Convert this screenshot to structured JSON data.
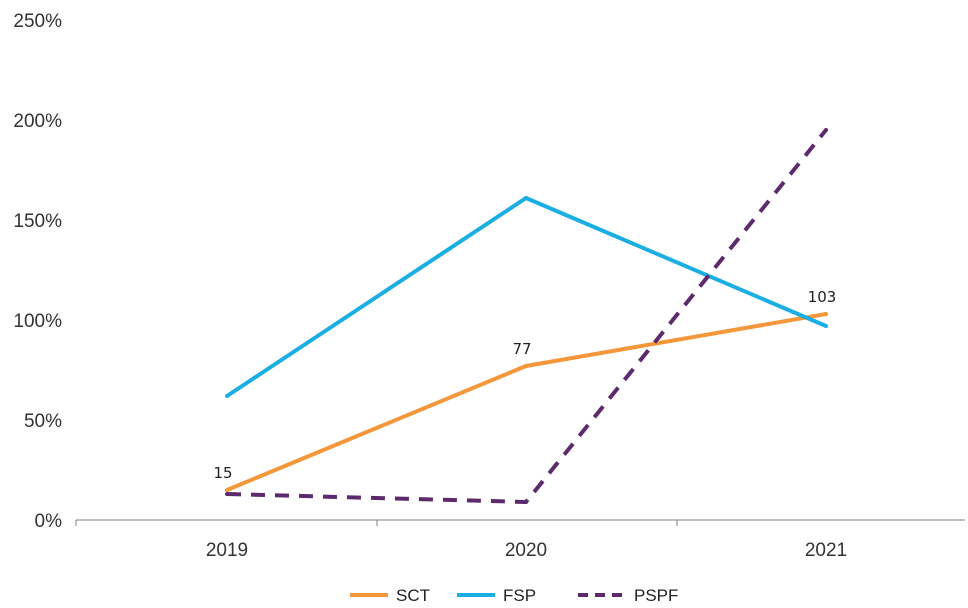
{
  "chart_data": {
    "type": "line",
    "categories": [
      "2019",
      "2020",
      "2021"
    ],
    "ylim": [
      0,
      250
    ],
    "y_ticks": [
      0,
      50,
      100,
      150,
      200,
      250
    ],
    "y_tick_labels": [
      "0%",
      "50%",
      "100%",
      "150%",
      "200%",
      "250%"
    ],
    "grid": false,
    "legend_position": "bottom",
    "series": [
      {
        "name": "SCT",
        "values": [
          15,
          77,
          103
        ],
        "color": "#F4973A",
        "dash": "solid",
        "data_labels": [
          "15",
          "77",
          "103"
        ]
      },
      {
        "name": "FSP",
        "values": [
          62,
          161,
          97
        ],
        "color": "#1BAEE3",
        "dash": "solid",
        "data_labels": []
      },
      {
        "name": "PSPF",
        "values": [
          13,
          9,
          195
        ],
        "color": "#5E2A6E",
        "dash": "dashed",
        "data_labels": []
      }
    ]
  }
}
